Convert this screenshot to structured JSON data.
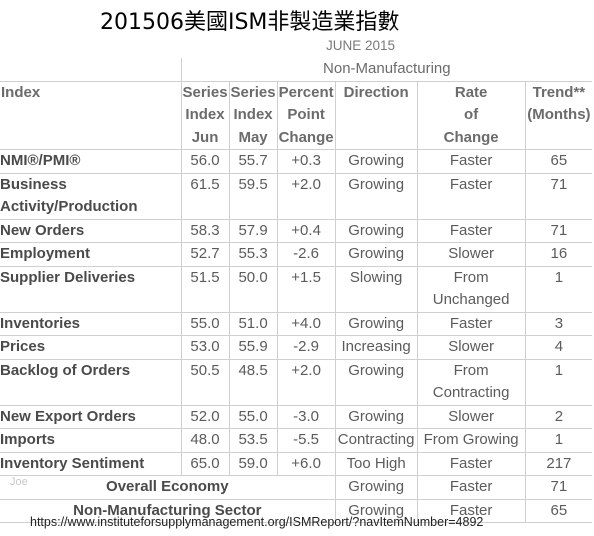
{
  "title": "201506美國ISM非製造業指數",
  "month": "JUNE 2015",
  "group_header": "Non-Manufacturing",
  "headers": {
    "index": "Index",
    "jun": [
      "Series",
      "Index",
      "Jun"
    ],
    "may": [
      "Series",
      "Index",
      "May"
    ],
    "change": [
      "Percent",
      "Point",
      "Change"
    ],
    "direction": "Direction",
    "rate": [
      "Rate",
      "of",
      "Change"
    ],
    "trend": [
      "Trend**",
      "(Months)"
    ]
  },
  "rows": [
    {
      "index": [
        "NMI®/PMI®"
      ],
      "jun": "56.0",
      "may": "55.7",
      "change": "+0.3",
      "direction": "Growing",
      "rate": [
        "Faster"
      ],
      "trend": "65"
    },
    {
      "index": [
        "Business",
        "Activity/Production"
      ],
      "jun": "61.5",
      "may": "59.5",
      "change": "+2.0",
      "direction": "Growing",
      "rate": [
        "Faster"
      ],
      "trend": "71"
    },
    {
      "index": [
        "New Orders"
      ],
      "jun": "58.3",
      "may": "57.9",
      "change": "+0.4",
      "direction": "Growing",
      "rate": [
        "Faster"
      ],
      "trend": "71"
    },
    {
      "index": [
        "Employment"
      ],
      "jun": "52.7",
      "may": "55.3",
      "change": "-2.6",
      "direction": "Growing",
      "rate": [
        "Slower"
      ],
      "trend": "16"
    },
    {
      "index": [
        "Supplier Deliveries"
      ],
      "jun": "51.5",
      "may": "50.0",
      "change": "+1.5",
      "direction": "Slowing",
      "rate": [
        "From",
        "Unchanged"
      ],
      "trend": "1"
    },
    {
      "index": [
        "Inventories"
      ],
      "jun": "55.0",
      "may": "51.0",
      "change": "+4.0",
      "direction": "Growing",
      "rate": [
        "Faster"
      ],
      "trend": "3"
    },
    {
      "index": [
        "Prices"
      ],
      "jun": "53.0",
      "may": "55.9",
      "change": "-2.9",
      "direction": "Increasing",
      "rate": [
        "Slower"
      ],
      "trend": "4"
    },
    {
      "index": [
        "Backlog of Orders"
      ],
      "jun": "50.5",
      "may": "48.5",
      "change": "+2.0",
      "direction": "Growing",
      "rate": [
        "From",
        "Contracting"
      ],
      "trend": "1"
    },
    {
      "index": [
        "New Export Orders"
      ],
      "jun": "52.0",
      "may": "55.0",
      "change": "-3.0",
      "direction": "Growing",
      "rate": [
        "Slower"
      ],
      "trend": "2"
    },
    {
      "index": [
        "Imports"
      ],
      "jun": "48.0",
      "may": "53.5",
      "change": "-5.5",
      "direction": "Contracting",
      "rate": [
        "From Growing"
      ],
      "trend": "1"
    },
    {
      "index": [
        "Inventory Sentiment"
      ],
      "jun": "65.0",
      "may": "59.0",
      "change": "+6.0",
      "direction": "Too High",
      "rate": [
        "Faster"
      ],
      "trend": "217"
    }
  ],
  "summary": [
    {
      "label": "Overall Economy",
      "direction": "Growing",
      "rate": "Faster",
      "trend": "71"
    },
    {
      "label": "Non-Manufacturing Sector",
      "direction": "Growing",
      "rate": "Faster",
      "trend": "65"
    }
  ],
  "watermark": "Joe",
  "source_url": "https://www.instituteforsupplymanagement.org/ISMReport/?navItemNumber=4892"
}
